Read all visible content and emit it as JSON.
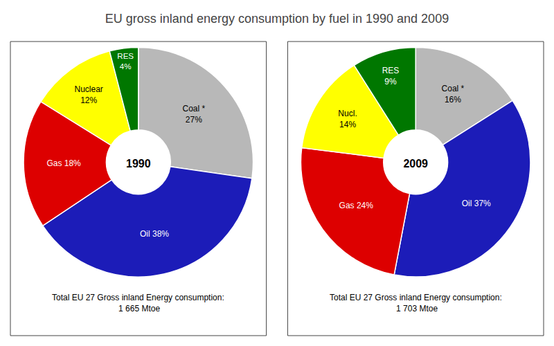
{
  "title": "EU gross inland energy consumption by fuel in 1990 and 2009",
  "chart_data": [
    {
      "type": "pie",
      "title": "1990",
      "categories": [
        "Coal *",
        "Oil",
        "Gas",
        "Nuclear",
        "RES"
      ],
      "values": [
        27,
        38,
        18,
        12,
        4
      ],
      "value_labels": [
        "Coal *\n27%",
        "Oil 38%",
        "Gas 18%",
        "Nuclear\n12%",
        "RES\n4%"
      ],
      "colors": [
        "#b8b8b8",
        "#1c1cb8",
        "#dd0000",
        "#ffff00",
        "#007700"
      ],
      "data_labels": true,
      "annotations": [
        "Total EU 27 Gross inland Energy consumption:\n 1 665 Mtoe"
      ]
    },
    {
      "type": "pie",
      "title": "2009",
      "categories": [
        "Coal *",
        "Oil",
        "Gas",
        "Nucl.",
        "RES"
      ],
      "values": [
        16,
        37,
        24,
        14,
        9
      ],
      "value_labels": [
        "Coal *\n16%",
        "Oil 37%",
        "Gas 24%",
        "Nucl.\n14%",
        "RES\n9%"
      ],
      "colors": [
        "#b8b8b8",
        "#1c1cb8",
        "#dd0000",
        "#ffff00",
        "#007700"
      ],
      "data_labels": true,
      "annotations": [
        "Total EU 27 Gross inland Energy consumption:\n 1 703 Mtoe"
      ]
    }
  ]
}
